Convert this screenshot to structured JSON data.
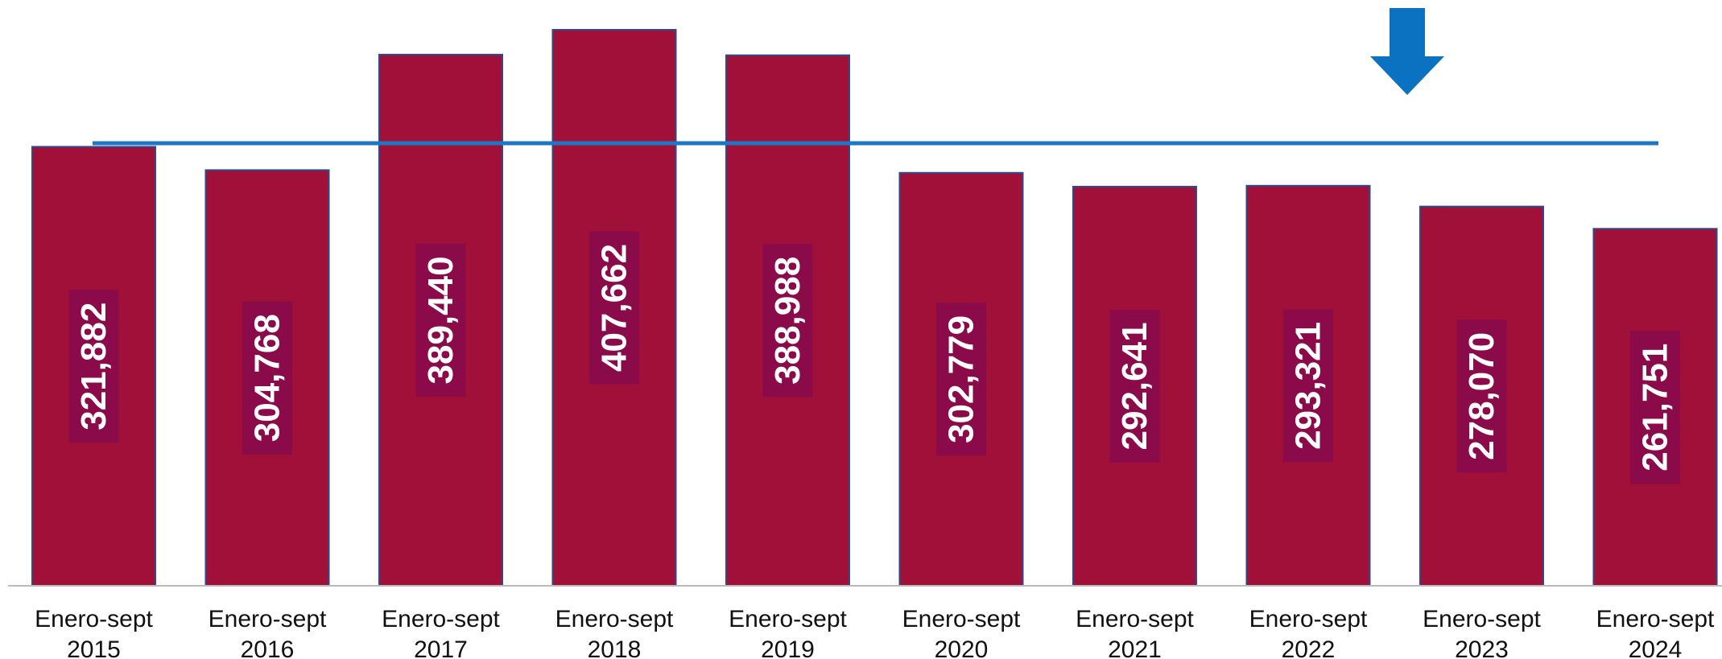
{
  "chart_data": {
    "type": "bar",
    "categories": [
      [
        "Enero-sept",
        "2015"
      ],
      [
        "Enero-sept",
        "2016"
      ],
      [
        "Enero-sept",
        "2017"
      ],
      [
        "Enero-sept",
        "2018"
      ],
      [
        "Enero-sept",
        "2019"
      ],
      [
        "Enero-sept",
        "2020"
      ],
      [
        "Enero-sept",
        "2021"
      ],
      [
        "Enero-sept",
        "2022"
      ],
      [
        "Enero-sept",
        "2023"
      ],
      [
        "Enero-sept",
        "2024"
      ]
    ],
    "values": [
      321882,
      304768,
      389440,
      407662,
      388988,
      302779,
      292641,
      293321,
      278070,
      261751
    ],
    "value_labels": [
      "321,882",
      "304,768",
      "389,440",
      "407,662",
      "388,988",
      "302,779",
      "292,641",
      "293,321",
      "278,070",
      "261,751"
    ],
    "reference_line": {
      "value": 324500,
      "color": "#1f77c4"
    },
    "annotation": {
      "type": "down-arrow",
      "color": "#0a72c0"
    },
    "ylim": [
      0,
      407662
    ],
    "grid": false,
    "legend": "none",
    "colors": {
      "bar": "#a01038",
      "bar_outline": "#2e4a8a",
      "label_background": "#8a0a4a",
      "label_text": "#ffffff",
      "axis": "#bbbbbb",
      "tick_text": "#111111"
    }
  }
}
